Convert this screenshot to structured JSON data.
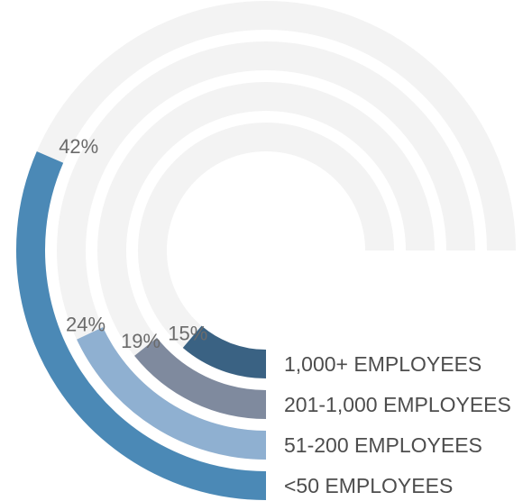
{
  "chart_data": {
    "type": "radial-bar",
    "categories": [
      "1,000+ EMPLOYEES",
      "201-1,000 EMPLOYEES",
      "51-200 EMPLOYEES",
      "<50 EMPLOYEES"
    ],
    "values": [
      15,
      19,
      24,
      42
    ],
    "labels": [
      "15%",
      "19%",
      "24%",
      "42%"
    ],
    "unit": "%",
    "colors": [
      "#3a6283",
      "#7f8a9e",
      "#8fb0d1",
      "#4b89b6"
    ],
    "track_color": "#f3f3f3"
  }
}
